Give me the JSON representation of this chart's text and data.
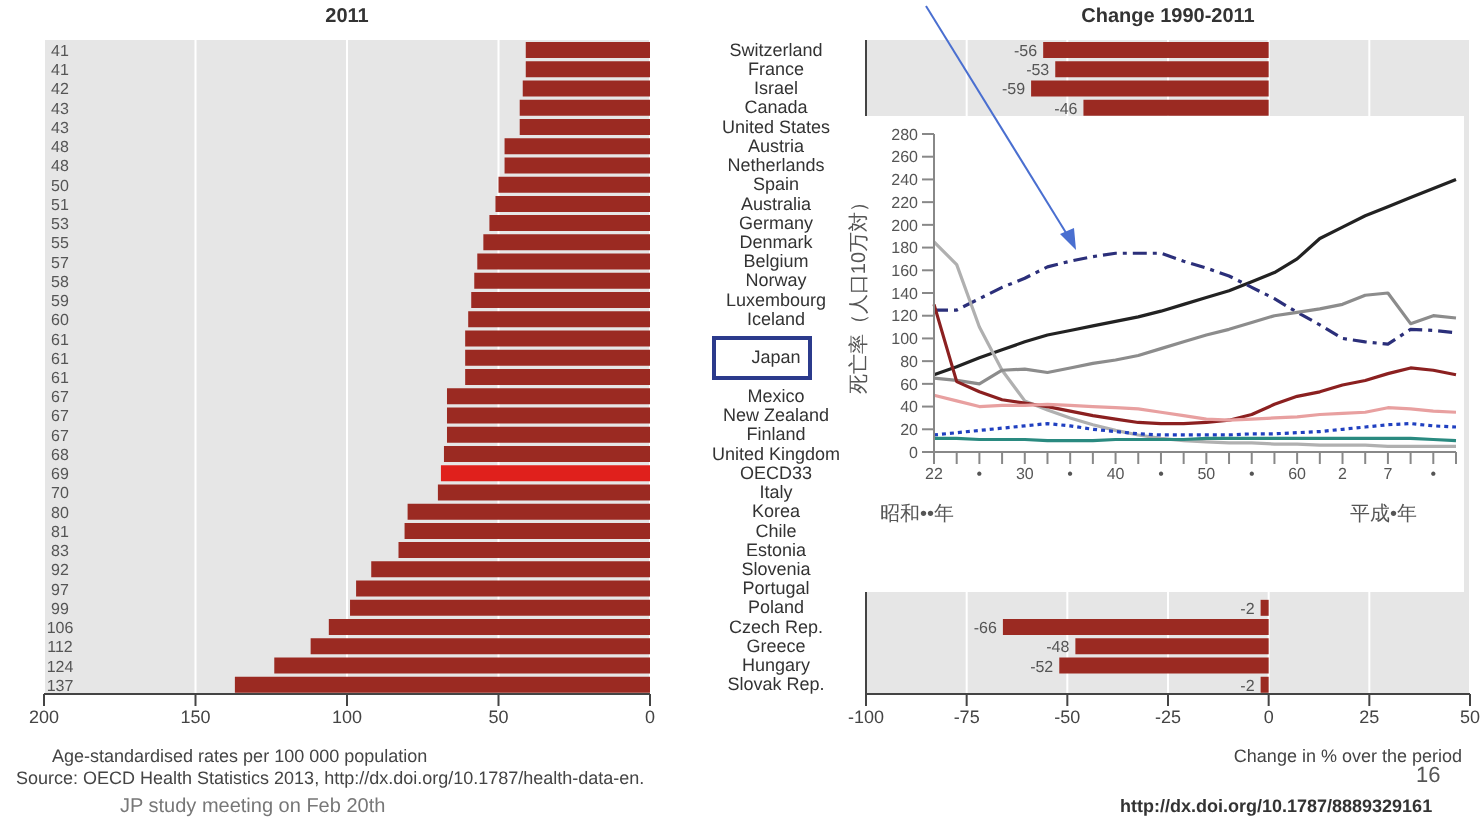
{
  "chart_data": [
    {
      "type": "bar",
      "orientation": "horizontal",
      "title": "2011",
      "xlabel": "Age-standardised rates per 100 000 population",
      "categories": [
        "Switzerland",
        "France",
        "Israel",
        "Canada",
        "United States",
        "Austria",
        "Netherlands",
        "Spain",
        "Australia",
        "Germany",
        "Denmark",
        "Belgium",
        "Norway",
        "Luxembourg",
        "Iceland",
        null,
        "Japan",
        null,
        "Mexico",
        "New Zealand",
        "Finland",
        "United Kingdom",
        "OECD33",
        "Italy",
        "Korea",
        "Chile",
        "Estonia",
        "Slovenia",
        "Portugal",
        "Poland",
        "Czech Rep.",
        "Greece",
        "Hungary",
        "Slovak Rep."
      ],
      "values": [
        41,
        41,
        42,
        43,
        43,
        48,
        48,
        50,
        51,
        53,
        55,
        57,
        58,
        59,
        60,
        61,
        61,
        61,
        67,
        67,
        67,
        68,
        69,
        70,
        80,
        81,
        83,
        92,
        97,
        99,
        106,
        112,
        124,
        137
      ],
      "colors": [
        "#9b2a22",
        "#9b2a22",
        "#9b2a22",
        "#9b2a22",
        "#9b2a22",
        "#9b2a22",
        "#9b2a22",
        "#9b2a22",
        "#9b2a22",
        "#9b2a22",
        "#9b2a22",
        "#9b2a22",
        "#9b2a22",
        "#9b2a22",
        "#9b2a22",
        "#9b2a22",
        "#9b2a22",
        "#9b2a22",
        "#9b2a22",
        "#9b2a22",
        "#9b2a22",
        "#9b2a22",
        "#e0201c",
        "#9b2a22",
        "#9b2a22",
        "#9b2a22",
        "#9b2a22",
        "#9b2a22",
        "#9b2a22",
        "#9b2a22",
        "#9b2a22",
        "#9b2a22",
        "#9b2a22",
        "#9b2a22"
      ],
      "xlim": [
        200,
        0
      ],
      "xticks": [
        200,
        150,
        100,
        50,
        0
      ],
      "grid": "x",
      "data_labels": true,
      "annotations": [
        "Source:  OECD Health Statistics 2013, http://dx.doi.org/10.1787/health-data-en.",
        "JP study meeting on Feb 20th"
      ]
    },
    {
      "type": "bar",
      "orientation": "horizontal",
      "title": "Change 1990-2011",
      "xlabel": "Change in % over the period",
      "categories": [
        null,
        null,
        null,
        null,
        null,
        null,
        null,
        null,
        null,
        null,
        null,
        null,
        null,
        null,
        null,
        null,
        null,
        null,
        null,
        null,
        null,
        null,
        null,
        null,
        null,
        null,
        null,
        null,
        null,
        null,
        null,
        null,
        null,
        null
      ],
      "values": [
        -56,
        -53,
        -59,
        -46,
        null,
        null,
        null,
        null,
        null,
        null,
        null,
        null,
        null,
        null,
        null,
        null,
        null,
        null,
        null,
        null,
        null,
        null,
        null,
        null,
        null,
        null,
        null,
        null,
        null,
        -2,
        -66,
        -48,
        -52,
        -2
      ],
      "color": "#9b2a22",
      "xlim": [
        -100,
        50
      ],
      "xticks": [
        -100,
        -75,
        -50,
        -25,
        0,
        25,
        50
      ],
      "grid": "x",
      "data_labels": true,
      "annotations": [
        "16",
        "http://dx.doi.org/10.1787/8889329161"
      ]
    },
    {
      "type": "line",
      "ylabel": "死亡率（人口10万対）",
      "ylim": [
        0,
        280
      ],
      "yticks": [
        0,
        20,
        40,
        60,
        80,
        100,
        120,
        140,
        160,
        180,
        200,
        220,
        240,
        260,
        280
      ],
      "categories": [
        "22",
        null,
        "•",
        null,
        "30",
        null,
        "•",
        null,
        "40",
        null,
        "•",
        null,
        "50",
        null,
        "•",
        null,
        "60",
        null,
        "2",
        null,
        "7",
        null,
        "•",
        null
      ],
      "marker": "none",
      "annotations": [
        "昭和••年",
        "平成•年"
      ],
      "series": [
        {
          "color": "#222222",
          "line_style": "solid",
          "values": [
            68,
            75,
            83,
            90,
            97,
            103,
            107,
            111,
            115,
            119,
            124,
            130,
            136,
            142,
            150,
            158,
            170,
            188,
            198,
            208,
            216,
            224,
            232,
            240
          ]
        },
        {
          "color": "#2b2f7a",
          "line_style": "dashed",
          "values": [
            125,
            125,
            135,
            145,
            153,
            163,
            168,
            172,
            175,
            175,
            175,
            168,
            162,
            155,
            145,
            135,
            123,
            112,
            100,
            97,
            95,
            108,
            107,
            105
          ]
        },
        {
          "color": "#b0b0b0",
          "line_style": "solid",
          "values": [
            185,
            165,
            110,
            72,
            45,
            37,
            30,
            24,
            19,
            15,
            12,
            10,
            9,
            8,
            8,
            7,
            7,
            6,
            6,
            6,
            5,
            5,
            5,
            5
          ]
        },
        {
          "color": "#8c8c8c",
          "line_style": "solid",
          "values": [
            65,
            63,
            60,
            72,
            73,
            70,
            74,
            78,
            81,
            85,
            91,
            97,
            103,
            108,
            114,
            120,
            123,
            126,
            130,
            138,
            140,
            113,
            120,
            118
          ]
        },
        {
          "color": "#8b2020",
          "line_style": "solid",
          "values": [
            130,
            62,
            53,
            46,
            43,
            40,
            36,
            32,
            29,
            26,
            25,
            25,
            26,
            28,
            33,
            42,
            49,
            53,
            59,
            63,
            69,
            74,
            72,
            68
          ]
        },
        {
          "color": "#e8a0a0",
          "line_style": "solid",
          "values": [
            50,
            45,
            40,
            41,
            41,
            42,
            41,
            40,
            39,
            38,
            35,
            32,
            29,
            28,
            29,
            30,
            31,
            33,
            34,
            35,
            39,
            38,
            36,
            35
          ]
        },
        {
          "color": "#2040c0",
          "line_style": "dotted",
          "values": [
            15,
            17,
            19,
            21,
            23,
            25,
            23,
            20,
            18,
            16,
            15,
            15,
            15,
            15,
            16,
            16,
            17,
            18,
            20,
            22,
            24,
            25,
            23,
            22
          ]
        },
        {
          "color": "#2a8a80",
          "line_style": "solid",
          "values": [
            12,
            12,
            11,
            11,
            11,
            10,
            10,
            10,
            11,
            11,
            11,
            11,
            12,
            12,
            12,
            12,
            12,
            12,
            12,
            12,
            12,
            12,
            11,
            10
          ]
        }
      ]
    }
  ]
}
